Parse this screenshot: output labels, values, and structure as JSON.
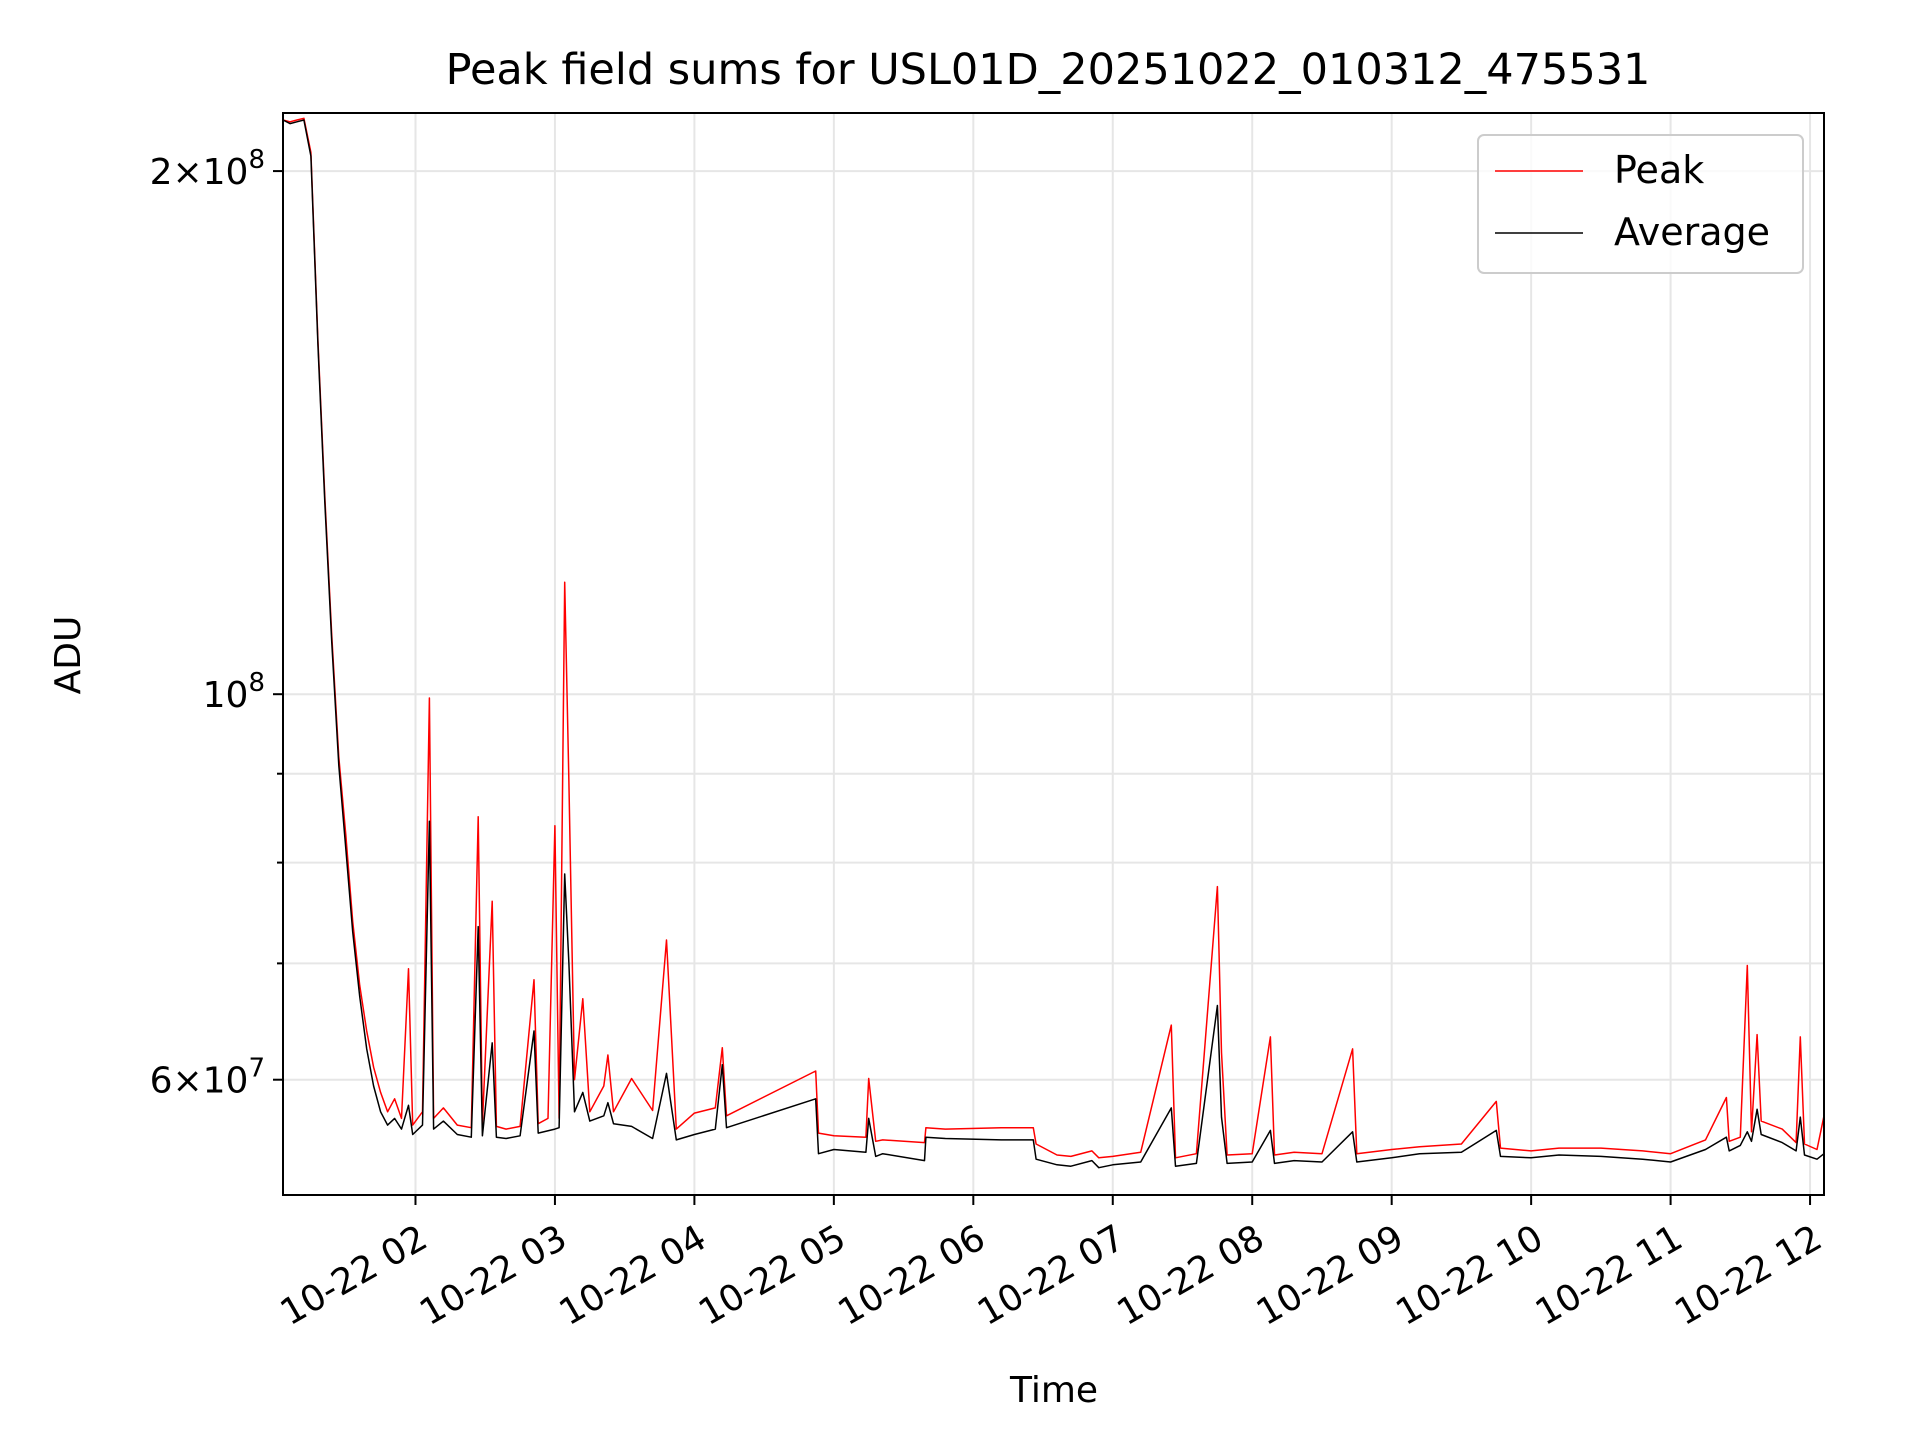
{
  "chart_data": {
    "type": "line",
    "title": "Peak field sums for USL01D_20251022_010312_475531",
    "xlabel": "Time",
    "ylabel": "ADU",
    "yscale": "log",
    "ylim": [
      51500000,
      216000000
    ],
    "xlim_hours": [
      1.05,
      12.1
    ],
    "grid": true,
    "legend_position": "upper-right",
    "x_ticks": [
      {
        "label": "10-22 02",
        "value": 2
      },
      {
        "label": "10-22 03",
        "value": 3
      },
      {
        "label": "10-22 04",
        "value": 4
      },
      {
        "label": "10-22 05",
        "value": 5
      },
      {
        "label": "10-22 06",
        "value": 6
      },
      {
        "label": "10-22 07",
        "value": 7
      },
      {
        "label": "10-22 08",
        "value": 8
      },
      {
        "label": "10-22 09",
        "value": 9
      },
      {
        "label": "10-22 10",
        "value": 10
      },
      {
        "label": "10-22 11",
        "value": 11
      },
      {
        "label": "10-22 12",
        "value": 12
      }
    ],
    "y_major_ticks": [
      {
        "value": 60000000,
        "mantissa": "6",
        "exponent": "7"
      },
      {
        "value": 100000000,
        "mantissa": "",
        "exponent": "8"
      },
      {
        "value": 200000000,
        "mantissa": "2",
        "exponent": "8"
      }
    ],
    "y_minor_ticks": [
      70000000,
      80000000,
      90000000
    ],
    "tick_times_sign": "×",
    "tick_base": "10",
    "series": [
      {
        "name": "Peak",
        "color": "#ff0000",
        "points": [
          [
            1.05,
            214
          ],
          [
            1.1,
            213.5
          ],
          [
            1.15,
            214
          ],
          [
            1.2,
            214.5
          ],
          [
            1.25,
            205
          ],
          [
            1.3,
            160
          ],
          [
            1.35,
            130
          ],
          [
            1.4,
            108
          ],
          [
            1.45,
            92
          ],
          [
            1.5,
            83
          ],
          [
            1.55,
            74
          ],
          [
            1.6,
            68
          ],
          [
            1.65,
            64
          ],
          [
            1.7,
            61
          ],
          [
            1.75,
            59
          ],
          [
            1.8,
            57.5
          ],
          [
            1.85,
            58.5
          ],
          [
            1.9,
            57
          ],
          [
            1.95,
            69.5
          ],
          [
            1.98,
            56.5
          ],
          [
            2.05,
            57.5
          ],
          [
            2.1,
            99.5
          ],
          [
            2.13,
            57
          ],
          [
            2.2,
            57.8
          ],
          [
            2.3,
            56.5
          ],
          [
            2.4,
            56.3
          ],
          [
            2.45,
            85
          ],
          [
            2.48,
            56.6
          ],
          [
            2.55,
            76
          ],
          [
            2.58,
            56.4
          ],
          [
            2.65,
            56.2
          ],
          [
            2.75,
            56.4
          ],
          [
            2.85,
            68.5
          ],
          [
            2.88,
            56.6
          ],
          [
            2.95,
            57
          ],
          [
            3.0,
            84
          ],
          [
            3.03,
            57
          ],
          [
            3.07,
            116
          ],
          [
            3.1,
            89
          ],
          [
            3.14,
            60
          ],
          [
            3.2,
            66.8
          ],
          [
            3.25,
            57.5
          ],
          [
            3.35,
            59.5
          ],
          [
            3.38,
            62
          ],
          [
            3.42,
            57.5
          ],
          [
            3.55,
            60.1
          ],
          [
            3.7,
            57.6
          ],
          [
            3.8,
            72.2
          ],
          [
            3.87,
            56.2
          ],
          [
            4.0,
            57.4
          ],
          [
            4.15,
            57.8
          ],
          [
            4.2,
            62.6
          ],
          [
            4.23,
            57.2
          ],
          [
            4.87,
            60.7
          ],
          [
            4.89,
            55.9
          ],
          [
            5.0,
            55.7
          ],
          [
            5.23,
            55.6
          ],
          [
            5.25,
            60.1
          ],
          [
            5.3,
            55.3
          ],
          [
            5.35,
            55.4
          ],
          [
            5.65,
            55.2
          ],
          [
            5.66,
            56.3
          ],
          [
            5.8,
            56.2
          ],
          [
            6.2,
            56.3
          ],
          [
            6.43,
            56.3
          ],
          [
            6.45,
            55.1
          ],
          [
            6.6,
            54.3
          ],
          [
            6.7,
            54.2
          ],
          [
            6.85,
            54.6
          ],
          [
            6.9,
            54.1
          ],
          [
            7.0,
            54.2
          ],
          [
            7.2,
            54.5
          ],
          [
            7.42,
            64.5
          ],
          [
            7.45,
            54.1
          ],
          [
            7.6,
            54.4
          ],
          [
            7.75,
            77.5
          ],
          [
            7.78,
            62.2
          ],
          [
            7.82,
            54.3
          ],
          [
            8.0,
            54.4
          ],
          [
            8.13,
            63.5
          ],
          [
            8.16,
            54.3
          ],
          [
            8.3,
            54.5
          ],
          [
            8.5,
            54.4
          ],
          [
            8.72,
            62.5
          ],
          [
            8.75,
            54.4
          ],
          [
            9.0,
            54.7
          ],
          [
            9.2,
            54.9
          ],
          [
            9.5,
            55.1
          ],
          [
            9.75,
            58.3
          ],
          [
            9.78,
            54.8
          ],
          [
            10.0,
            54.6
          ],
          [
            10.2,
            54.8
          ],
          [
            10.5,
            54.8
          ],
          [
            10.8,
            54.6
          ],
          [
            11.0,
            54.4
          ],
          [
            11.25,
            55.4
          ],
          [
            11.4,
            58.6
          ],
          [
            11.42,
            55.3
          ],
          [
            11.5,
            55.6
          ],
          [
            11.55,
            69.8
          ],
          [
            11.58,
            56
          ],
          [
            11.62,
            63.7
          ],
          [
            11.65,
            56.8
          ],
          [
            11.8,
            56.2
          ],
          [
            11.9,
            55.2
          ],
          [
            11.93,
            63.5
          ],
          [
            11.96,
            55.1
          ],
          [
            12.05,
            54.7
          ],
          [
            12.1,
            57.2
          ]
        ]
      },
      {
        "name": "Average",
        "color": "#000000",
        "points": [
          [
            1.05,
            214
          ],
          [
            1.1,
            213
          ],
          [
            1.15,
            213.5
          ],
          [
            1.2,
            214
          ],
          [
            1.25,
            204
          ],
          [
            1.3,
            159
          ],
          [
            1.35,
            129
          ],
          [
            1.4,
            107
          ],
          [
            1.45,
            91
          ],
          [
            1.5,
            81.5
          ],
          [
            1.55,
            73
          ],
          [
            1.6,
            67
          ],
          [
            1.65,
            62.5
          ],
          [
            1.7,
            59.5
          ],
          [
            1.75,
            57.5
          ],
          [
            1.8,
            56.5
          ],
          [
            1.85,
            57
          ],
          [
            1.9,
            56.2
          ],
          [
            1.95,
            58
          ],
          [
            1.98,
            55.8
          ],
          [
            2.05,
            56.5
          ],
          [
            2.1,
            84.5
          ],
          [
            2.13,
            56.2
          ],
          [
            2.2,
            56.8
          ],
          [
            2.3,
            55.8
          ],
          [
            2.4,
            55.6
          ],
          [
            2.45,
            73.5
          ],
          [
            2.48,
            55.7
          ],
          [
            2.55,
            63
          ],
          [
            2.58,
            55.6
          ],
          [
            2.65,
            55.5
          ],
          [
            2.75,
            55.7
          ],
          [
            2.85,
            64
          ],
          [
            2.88,
            55.9
          ],
          [
            3.0,
            56.2
          ],
          [
            3.03,
            56.3
          ],
          [
            3.07,
            78.8
          ],
          [
            3.1,
            70
          ],
          [
            3.14,
            57.5
          ],
          [
            3.2,
            59
          ],
          [
            3.25,
            56.8
          ],
          [
            3.35,
            57.2
          ],
          [
            3.38,
            58.2
          ],
          [
            3.42,
            56.6
          ],
          [
            3.55,
            56.4
          ],
          [
            3.7,
            55.5
          ],
          [
            3.8,
            60.5
          ],
          [
            3.87,
            55.4
          ],
          [
            4.0,
            55.8
          ],
          [
            4.15,
            56.2
          ],
          [
            4.2,
            61.2
          ],
          [
            4.23,
            56.3
          ],
          [
            4.87,
            58.5
          ],
          [
            4.89,
            54.4
          ],
          [
            5.0,
            54.7
          ],
          [
            5.23,
            54.5
          ],
          [
            5.25,
            57
          ],
          [
            5.3,
            54.2
          ],
          [
            5.35,
            54.4
          ],
          [
            5.65,
            53.9
          ],
          [
            5.66,
            55.6
          ],
          [
            5.8,
            55.5
          ],
          [
            6.2,
            55.4
          ],
          [
            6.43,
            55.4
          ],
          [
            6.45,
            54
          ],
          [
            6.6,
            53.6
          ],
          [
            6.7,
            53.5
          ],
          [
            6.85,
            53.9
          ],
          [
            6.9,
            53.4
          ],
          [
            7.0,
            53.6
          ],
          [
            7.2,
            53.8
          ],
          [
            7.42,
            57.8
          ],
          [
            7.45,
            53.5
          ],
          [
            7.6,
            53.7
          ],
          [
            7.75,
            66.2
          ],
          [
            7.78,
            57.1
          ],
          [
            7.82,
            53.7
          ],
          [
            8.0,
            53.8
          ],
          [
            8.13,
            56.1
          ],
          [
            8.16,
            53.7
          ],
          [
            8.3,
            53.9
          ],
          [
            8.5,
            53.8
          ],
          [
            8.72,
            56
          ],
          [
            8.75,
            53.8
          ],
          [
            9.0,
            54.1
          ],
          [
            9.2,
            54.4
          ],
          [
            9.5,
            54.5
          ],
          [
            9.75,
            56.1
          ],
          [
            9.78,
            54.2
          ],
          [
            10.0,
            54.1
          ],
          [
            10.2,
            54.3
          ],
          [
            10.5,
            54.2
          ],
          [
            10.8,
            54
          ],
          [
            11.0,
            53.8
          ],
          [
            11.25,
            54.7
          ],
          [
            11.4,
            55.6
          ],
          [
            11.42,
            54.6
          ],
          [
            11.5,
            55
          ],
          [
            11.55,
            56
          ],
          [
            11.58,
            55.3
          ],
          [
            11.62,
            57.7
          ],
          [
            11.65,
            55.8
          ],
          [
            11.8,
            55.2
          ],
          [
            11.9,
            54.6
          ],
          [
            11.93,
            57.1
          ],
          [
            11.96,
            54.3
          ],
          [
            12.05,
            54
          ],
          [
            12.1,
            54.4
          ]
        ]
      }
    ]
  }
}
